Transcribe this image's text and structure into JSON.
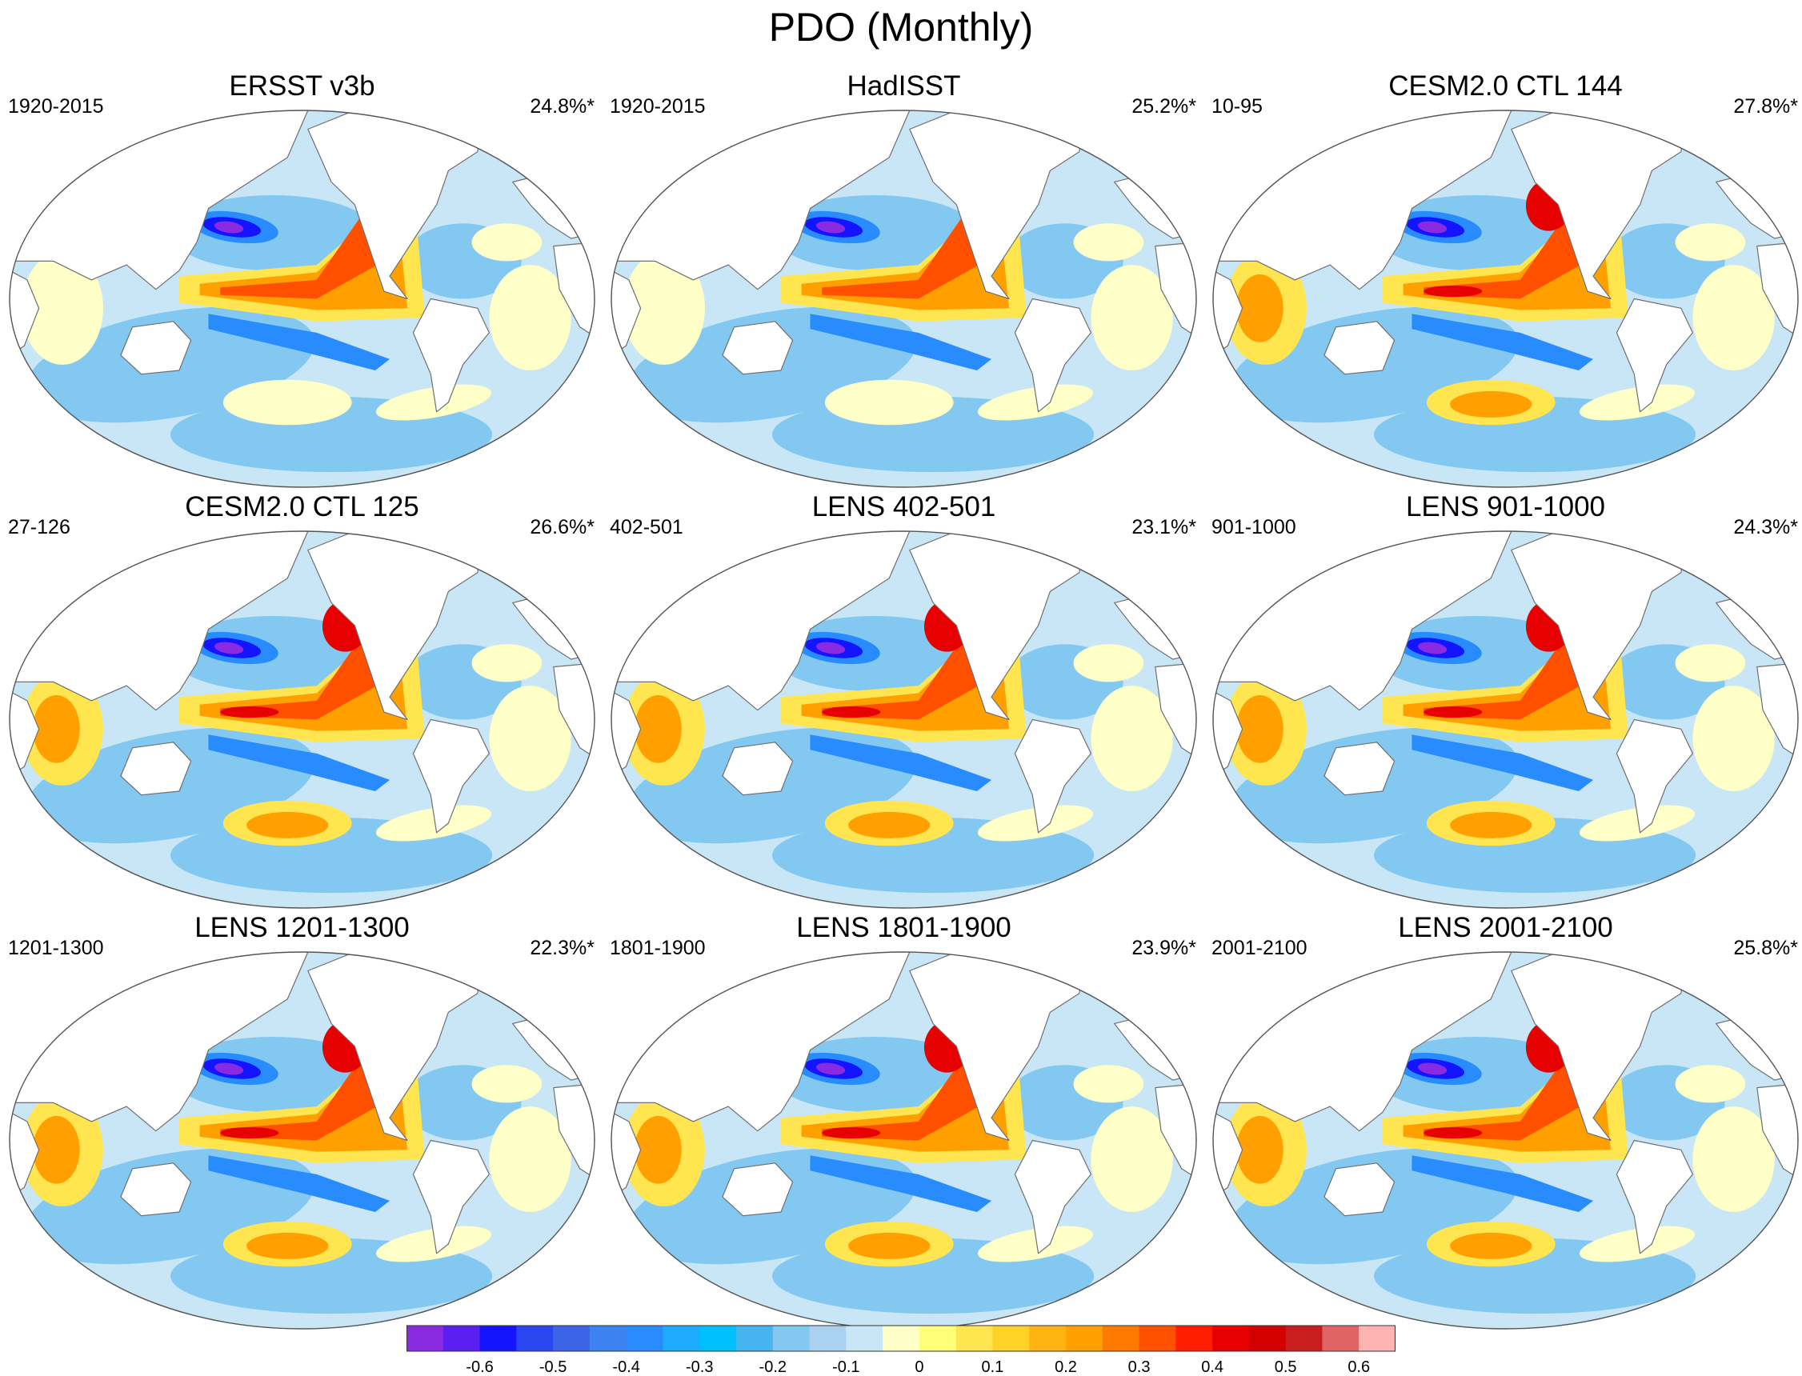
{
  "figure": {
    "title": "PDO (Monthly)"
  },
  "panels": [
    {
      "title": "ERSST v3b",
      "period": "1920-2015",
      "variance": "24.8%*",
      "style": "obs1"
    },
    {
      "title": "HadISST",
      "period": "1920-2015",
      "variance": "25.2%*",
      "style": "obs2"
    },
    {
      "title": "CESM2.0 CTL 144",
      "period": "10-95",
      "variance": "27.8%*",
      "style": "model"
    },
    {
      "title": "CESM2.0 CTL 125",
      "period": "27-126",
      "variance": "26.6%*",
      "style": "model"
    },
    {
      "title": "LENS 402-501",
      "period": "402-501",
      "variance": "23.1%*",
      "style": "model"
    },
    {
      "title": "LENS 901-1000",
      "period": "901-1000",
      "variance": "24.3%*",
      "style": "model"
    },
    {
      "title": "LENS 1201-1300",
      "period": "1201-1300",
      "variance": "22.3%*",
      "style": "model"
    },
    {
      "title": "LENS 1801-1900",
      "period": "1801-1900",
      "variance": "23.9%*",
      "style": "model"
    },
    {
      "title": "LENS 2001-2100",
      "period": "2001-2100",
      "variance": "25.8%*",
      "style": "model"
    }
  ],
  "colorbar": {
    "colors": [
      "#8a2be2",
      "#5a1ef0",
      "#1414ff",
      "#2a46f0",
      "#3c64e6",
      "#3c82f0",
      "#288cff",
      "#1eaaff",
      "#00bfff",
      "#46b4ee",
      "#82c8f0",
      "#aad2f0",
      "#c8e6f5",
      "#ffffc8",
      "#ffff78",
      "#ffe650",
      "#ffd228",
      "#ffb414",
      "#ffa000",
      "#ff7800",
      "#ff5000",
      "#ff1e00",
      "#e60000",
      "#d20000",
      "#c81e1e",
      "#e16464",
      "#ffb4b4"
    ],
    "labels": [
      "-0.6",
      "-0.5",
      "-0.4",
      "-0.3",
      "-0.2",
      "-0.1",
      "0",
      "0.1",
      "0.2",
      "0.3",
      "0.4",
      "0.5",
      "0.6"
    ]
  },
  "palette": {
    "land": "#ffffff",
    "coast": "#6f6f6f",
    "light_blue": "#c8e6f5",
    "mid_blue": "#82c8f0",
    "blue": "#288cff",
    "deep_blue": "#1414ff",
    "violet": "#8a2be2",
    "light_yellow": "#ffffc8",
    "yellow": "#ffe650",
    "orange": "#ffa000",
    "red_orange": "#ff5000",
    "red": "#e60000",
    "pink": "#ffb4b4"
  }
}
